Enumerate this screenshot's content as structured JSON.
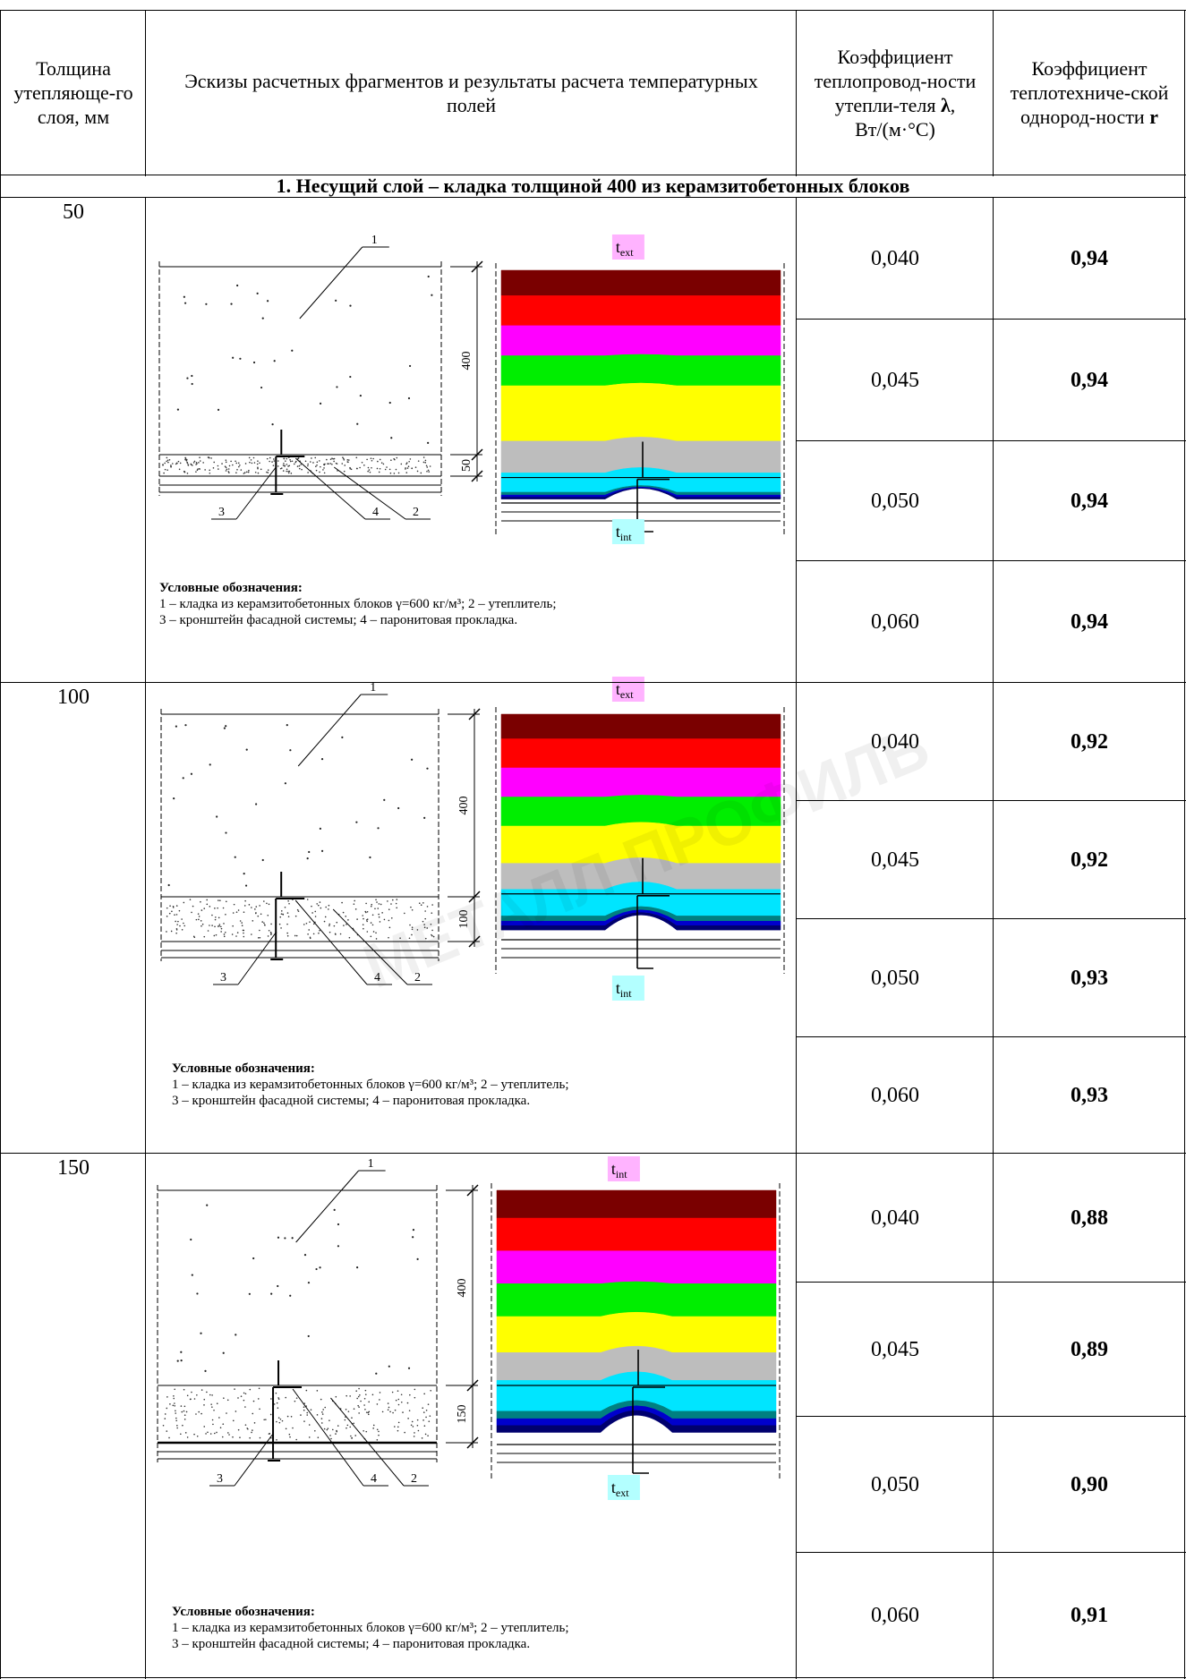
{
  "header": {
    "col1": "Толщина утепляюще-го слоя, мм",
    "col2": "Эскизы расчетных фрагментов и результаты расчета температурных полей",
    "col3_a": "Коэффициент теплопровод-ности утепли-теля",
    "col3_sym": "λ",
    "col3_unit": "Вт/(м·°С)",
    "col4_a": "Коэффициент теплотехниче-ской однород-ности",
    "col4_sym": "r"
  },
  "section_title": "1. Несущий слой – кладка толщиной 400 из керамзитобетонных блоков",
  "groups": [
    {
      "thickness": "50",
      "dim_top": "400",
      "dim_bottom": "50",
      "t_top": "text",
      "t_bottom": "tint",
      "t_top_sub": "ext",
      "t_bottom_sub": "int",
      "rows": [
        {
          "lambda": "0,040",
          "r": "0,94"
        },
        {
          "lambda": "0,045",
          "r": "0,94"
        },
        {
          "lambda": "0,050",
          "r": "0,94"
        },
        {
          "lambda": "0,060",
          "r": "0,94"
        }
      ]
    },
    {
      "thickness": "100",
      "dim_top": "400",
      "dim_bottom": "100",
      "t_top_sub": "ext",
      "t_bottom_sub": "int",
      "rows": [
        {
          "lambda": "0,040",
          "r": "0,92"
        },
        {
          "lambda": "0,045",
          "r": "0,92"
        },
        {
          "lambda": "0,050",
          "r": "0,93"
        },
        {
          "lambda": "0,060",
          "r": "0,93"
        }
      ]
    },
    {
      "thickness": "150",
      "dim_top": "400",
      "dim_bottom": "150",
      "t_top_sub": "int",
      "t_bottom_sub": "ext",
      "rows": [
        {
          "lambda": "0,040",
          "r": "0,88"
        },
        {
          "lambda": "0,045",
          "r": "0,89"
        },
        {
          "lambda": "0,050",
          "r": "0,90"
        },
        {
          "lambda": "0,060",
          "r": "0,91"
        }
      ]
    }
  ],
  "legend": {
    "title": "Условные обозначения:",
    "line1": "1 – кладка из керамзитобетонных блоков γ=600 кг/м³; 2 – утеплитель;",
    "line2": "3 – кронштейн фасадной системы; 4 – паронитовая прокладка."
  },
  "callouts": [
    "1",
    "2",
    "3",
    "4"
  ],
  "t_letter": "t",
  "watermark": "МЕТАЛЛ ПРОФИЛЬ",
  "colors": {
    "band1": "#7a0000",
    "band2": "#ff0000",
    "band3": "#ff00ff",
    "band4": "#00ee00",
    "band5": "#ffff00",
    "band6": "#bdbdbd",
    "band7": "#00e5ff",
    "band8": "#008080",
    "band9": "#0000cc",
    "band10": "#00006e",
    "text_highlight": "#ffb3ff",
    "tint_highlight": "#b3ffff"
  }
}
